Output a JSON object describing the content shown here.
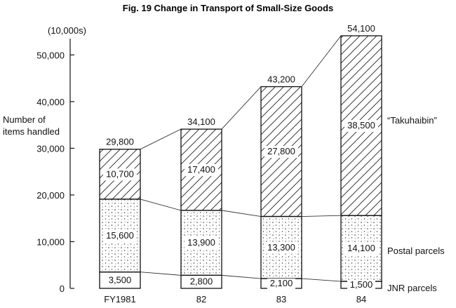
{
  "chart_data": {
    "type": "bar",
    "stacked": true,
    "title": "Fig. 19  Change in Transport of Small-Size Goods",
    "unit": "(10,000s)",
    "ylabel_line1": "Number of",
    "ylabel_line2": "items handled",
    "categories": [
      "FY1981",
      "82",
      "83",
      "84"
    ],
    "ylim": [
      0,
      55000
    ],
    "yticks": [
      0,
      10000,
      20000,
      30000,
      40000,
      50000
    ],
    "ytick_labels": [
      "0",
      "10,000",
      "20,000",
      "30,000",
      "40,000",
      "50,000"
    ],
    "series": [
      {
        "name": "JNR parcels",
        "values": [
          3500,
          2800,
          2100,
          1500
        ],
        "labels": [
          "3,500",
          "2,800",
          "2,100",
          "1,500"
        ],
        "pattern": "blank"
      },
      {
        "name": "Postal parcels",
        "values": [
          15600,
          13900,
          13300,
          14100
        ],
        "labels": [
          "15,600",
          "13,900",
          "13,300",
          "14,100"
        ],
        "pattern": "dots"
      },
      {
        "name": "“Takuhaibin”",
        "values": [
          10700,
          17400,
          27800,
          38500
        ],
        "labels": [
          "10,700",
          "17,400",
          "27,800",
          "38,500"
        ],
        "pattern": "hatch"
      }
    ],
    "totals": [
      29800,
      34100,
      43200,
      54100
    ],
    "total_labels": [
      "29,800",
      "34,100",
      "43,200",
      "54,100"
    ],
    "grid": false,
    "legend": "right, beside last bar",
    "colors": {
      "ink": "#111111",
      "background": "#ffffff"
    }
  }
}
